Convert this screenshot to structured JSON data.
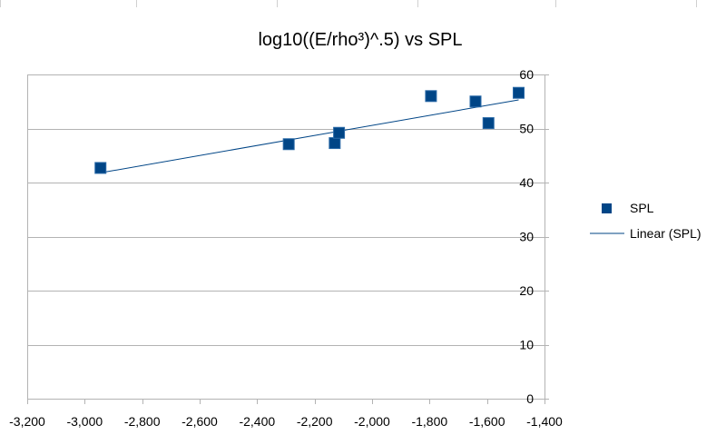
{
  "chart_data": {
    "type": "scatter",
    "title": "log10((E/rho³)^.5) vs SPL",
    "xlabel": "",
    "ylabel": "",
    "xlim": [
      -3200,
      -1400
    ],
    "ylim": [
      0,
      60
    ],
    "x_ticks": [
      -3200,
      -3000,
      -2800,
      -2600,
      -2400,
      -2200,
      -2000,
      -1800,
      -1600,
      -1400
    ],
    "x_tick_labels": [
      "-3,200",
      "-3,000",
      "-2,800",
      "-2,600",
      "-2,400",
      "-2,200",
      "-2,000",
      "-1,800",
      "-1,600",
      "-1,400"
    ],
    "y_ticks": [
      0,
      10,
      20,
      30,
      40,
      50,
      60
    ],
    "y_tick_labels": [
      "0",
      "10",
      "20",
      "30",
      "40",
      "50",
      "60"
    ],
    "grid": true,
    "legend_position": "right",
    "series": [
      {
        "name": "SPL",
        "kind": "points",
        "marker": "square",
        "color": "#004586",
        "points": [
          {
            "x": -2945,
            "y": 42.7
          },
          {
            "x": -2290,
            "y": 47.1
          },
          {
            "x": -2130,
            "y": 47.3
          },
          {
            "x": -2115,
            "y": 49.2
          },
          {
            "x": -1795,
            "y": 56.0
          },
          {
            "x": -1640,
            "y": 55.0
          },
          {
            "x": -1595,
            "y": 51.0
          },
          {
            "x": -1490,
            "y": 56.6
          }
        ]
      },
      {
        "name": "Linear (SPL)",
        "kind": "trendline",
        "color": "#004586",
        "x_range": [
          -2945,
          -1490
        ],
        "y_values": [
          41.8,
          55.3
        ]
      }
    ]
  }
}
